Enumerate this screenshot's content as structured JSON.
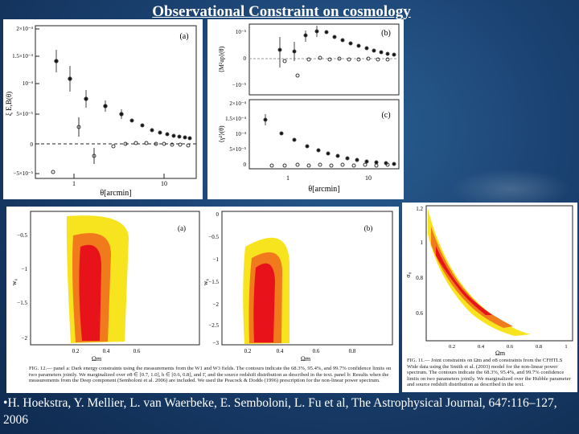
{
  "slide": {
    "title": "Observational Constraint on cosmology",
    "citation_bullet": "•",
    "citation": "H. Hoekstra, Y. Mellier, L. van Waerbeke, E. Semboloni, L. Fu et al, The Astrophysical Journal, 647:116–127, 2006"
  },
  "fig_a": {
    "label": "(a)",
    "ylabel": "ξ E,B(θ)",
    "xlabel": "θ[arcmin]",
    "yticks": [
      "2×10⁻⁴",
      "1.5×10⁻⁴",
      "10⁻⁴",
      "5×10⁻⁵",
      "0",
      "−5×10⁻⁵"
    ],
    "xticks": [
      "1",
      "10"
    ]
  },
  "fig_b": {
    "label": "(b)",
    "ylabel": "⟨M²ap⟩(θ)",
    "yticks": [
      "10⁻⁵",
      "0",
      "−10⁻⁵"
    ]
  },
  "fig_c": {
    "label": "(c)",
    "ylabel": "⟨γ²⟩(θ)",
    "xlabel": "θ[arcmin]",
    "yticks": [
      "2×10⁻⁴",
      "1.5×10⁻⁴",
      "10⁻⁴",
      "5×10⁻⁵",
      "0"
    ],
    "xticks": [
      "1",
      "10"
    ]
  },
  "contour_a": {
    "label": "(a)",
    "ylabel": "w₀",
    "xlabel": "Ωm",
    "yticks": [
      "−0.5",
      "−1",
      "−1.5",
      "−2"
    ],
    "xticks": [
      "0.2",
      "0.4",
      "0.6"
    ]
  },
  "contour_b": {
    "label": "(b)",
    "ylabel": "w₀",
    "xlabel": "Ωm",
    "yticks": [
      "0",
      "−0.5",
      "−1",
      "−1.5",
      "−2",
      "−2.5",
      "−3"
    ],
    "xticks": [
      "0.2",
      "0.4",
      "0.6",
      "0.8"
    ]
  },
  "contour_c": {
    "ylabel": "σ₈",
    "xlabel": "Ωm",
    "yticks": [
      "1.2",
      "1",
      "0.8",
      "0.6"
    ],
    "xticks": [
      "0.2",
      "0.4",
      "0.6",
      "0.8",
      "1"
    ]
  },
  "captions": {
    "fig12": "FIG. 12.— panel a: Dark energy constraints using the measurements from the W1 and W3 fields. The contours indicate the 68.3%, 95.4%, and 99.7% confidence limits on two parameters jointly. We marginalized over σ8 ∈ [0.7, 1.0], h ∈ [0.6, 0.8], and Γ, and the source redshift distribution as described in the text. panel b: Results when the measurements from the Deep component (Semboloni et al. 2006) are included. We used the Peacock & Dodds (1996) prescription for the non-linear power spectrum.",
    "fig11": "FIG. 11.— Joint constraints on Ωm and σ8 constraints from the CFHTLS Wide data using the Smith et al. (2003) model for the non-linear power spectrum. The contours indicate the 68.3%, 95.4%, and 99.7% confidence limits on two parameters jointly. We marginalized over the Hubble parameter and source redshift distribution as described in the text."
  },
  "colors": {
    "background": "#1a4170",
    "contour_inner": "#e8121a",
    "contour_mid": "#f07a1c",
    "contour_outer": "#f7e41f"
  }
}
